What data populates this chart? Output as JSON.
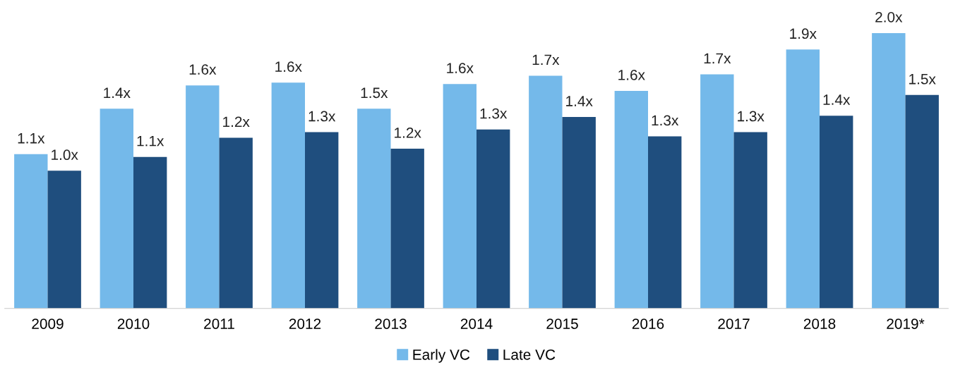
{
  "chart_data": {
    "type": "bar",
    "categories": [
      "2009",
      "2010",
      "2011",
      "2012",
      "2013",
      "2014",
      "2015",
      "2016",
      "2017",
      "2018",
      "2019*"
    ],
    "series": [
      {
        "name": "Early VC",
        "color": "#74b9ea",
        "values": [
          1.12,
          1.45,
          1.62,
          1.64,
          1.45,
          1.63,
          1.69,
          1.58,
          1.7,
          1.88,
          2.0
        ],
        "value_labels": [
          "1.1x",
          "1.4x",
          "1.6x",
          "1.6x",
          "1.5x",
          "1.6x",
          "1.7x",
          "1.6x",
          "1.7x",
          "1.9x",
          "2.0x"
        ]
      },
      {
        "name": "Late VC",
        "color": "#1f4e7e",
        "values": [
          1.0,
          1.1,
          1.24,
          1.28,
          1.16,
          1.3,
          1.39,
          1.25,
          1.28,
          1.4,
          1.55
        ],
        "value_labels": [
          "1.0x",
          "1.1x",
          "1.2x",
          "1.3x",
          "1.2x",
          "1.3x",
          "1.4x",
          "1.3x",
          "1.3x",
          "1.4x",
          "1.5x"
        ]
      }
    ],
    "legend": "bottom",
    "grid": false
  }
}
